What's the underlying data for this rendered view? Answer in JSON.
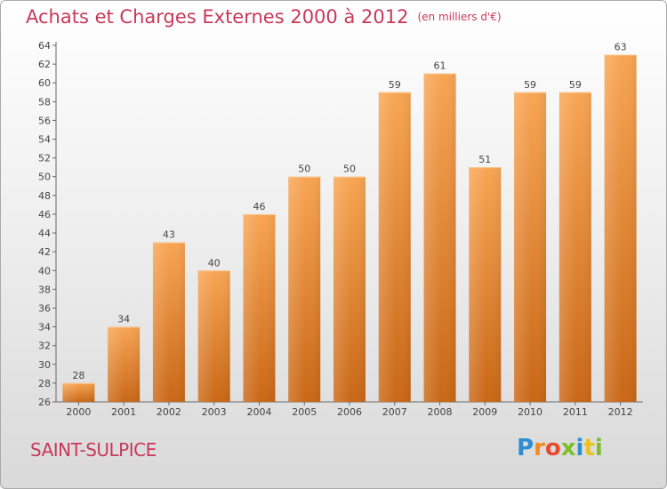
{
  "chart_data": {
    "type": "bar",
    "title": "Achats et Charges Externes 2000 à 2012",
    "subtitle": "(en milliers d'€)",
    "categories": [
      "2000",
      "2001",
      "2002",
      "2003",
      "2004",
      "2005",
      "2006",
      "2007",
      "2008",
      "2009",
      "2010",
      "2011",
      "2012"
    ],
    "values": [
      28,
      34,
      43,
      40,
      46,
      50,
      50,
      59,
      61,
      51,
      59,
      59,
      63
    ],
    "ylim": [
      26,
      64
    ],
    "yticks": [
      26,
      28,
      30,
      32,
      34,
      36,
      38,
      40,
      42,
      44,
      46,
      48,
      50,
      52,
      54,
      56,
      58,
      60,
      62,
      64
    ],
    "grid": false,
    "bar_color": "#f7a14e"
  },
  "place_name": "SAINT-SULPICE",
  "brand": {
    "letters": [
      "P",
      "r",
      "o",
      "x",
      "i",
      "t",
      "i"
    ],
    "colors": [
      "#2e8fd0",
      "#f08a1c",
      "#e84a2e",
      "#7cbf2a",
      "#2e8fd0",
      "#e8c41c",
      "#7cbf2a"
    ]
  },
  "colors": {
    "title": "#c8385a",
    "axis": "#666666",
    "text": "#444444"
  }
}
